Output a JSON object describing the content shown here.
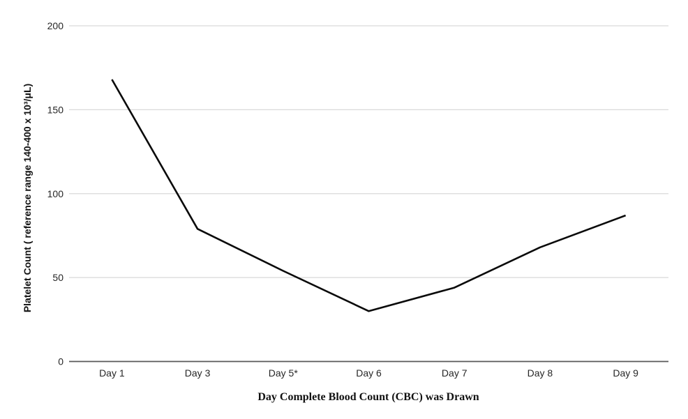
{
  "chart_data": {
    "type": "line",
    "title": "",
    "xlabel": "Day Complete Blood Count (CBC) was Drawn",
    "ylabel": "Platelet Count ( reference range 140-400 x 10³/μL)",
    "categories": [
      "Day 1",
      "Day 3",
      "Day 5*",
      "Day 6",
      "Day 7",
      "Day 8",
      "Day 9"
    ],
    "series": [
      {
        "name": "Platelet Count",
        "color": "#0a0a0a",
        "values": [
          168,
          79,
          54,
          30,
          44,
          68,
          87
        ]
      }
    ],
    "y_ticks": [
      0,
      50,
      100,
      150,
      200
    ],
    "ylim": [
      0,
      200
    ],
    "grid": "horizontal",
    "legend_position": "none"
  },
  "style": {
    "background": "#ffffff",
    "gridline_color": "#d9d9d9",
    "axis_line_color": "#595959",
    "tick_label_color": "#262626",
    "series_line_width": 2.6
  }
}
